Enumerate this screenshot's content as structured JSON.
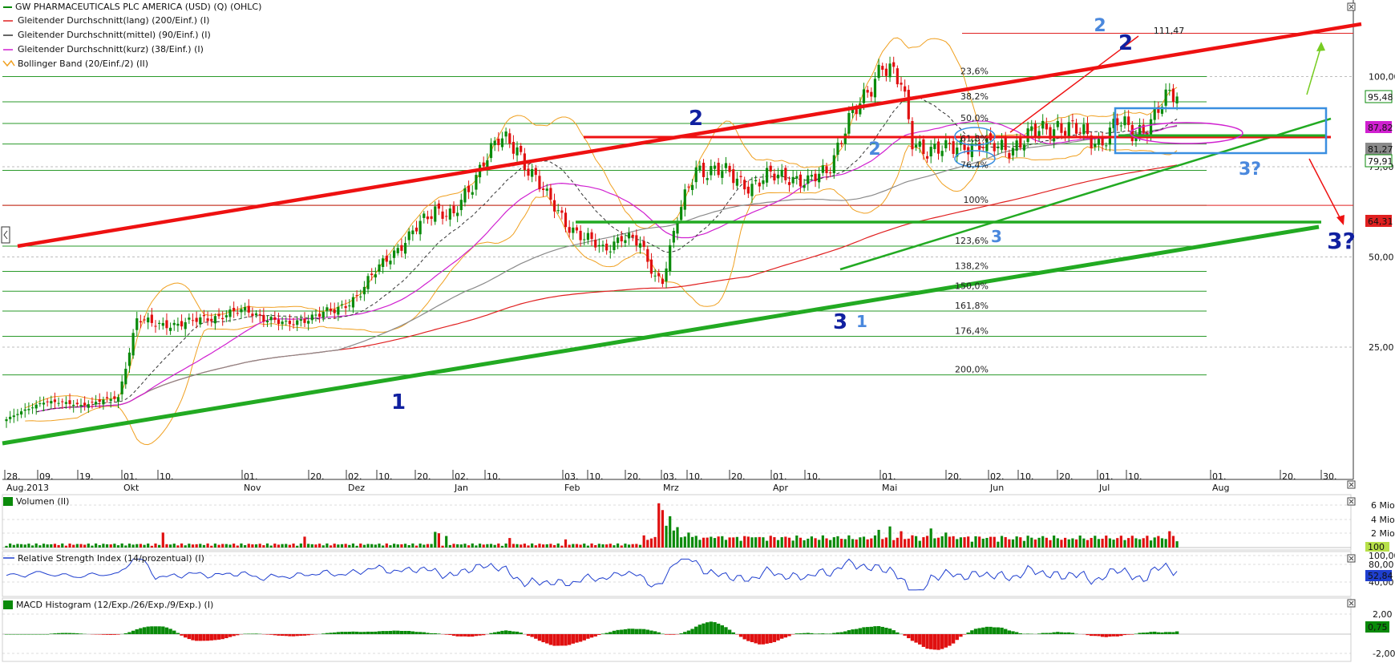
{
  "colors": {
    "up": "#0a8a0a",
    "down": "#e01010",
    "ma_long": "#e02020",
    "ma_mid": "#333333",
    "ma_short": "#d020d0",
    "bollinger": "#f0a020",
    "rsi": "#1f3fcf",
    "trend_red": "#ee1111",
    "trend_green": "#22aa22",
    "wave_dark": "#1020a0",
    "wave_light": "#4a88dd",
    "box": "#3a8fe0"
  },
  "legend": {
    "title": "GW PHARMACEUTICALS PLC AMERICA (USD) (Q) (OHLC)",
    "items": [
      "Gleitender Durchschnitt(lang) (200/Einf.) (I)",
      "Gleitender Durchschnitt(mittel) (90/Einf.) (I)",
      "Gleitender Durchschnitt(kurz) (38/Einf.) (I)",
      "Bollinger Band (20/Einf./2) (II)"
    ]
  },
  "chart_data": [
    {
      "type": "candlestick",
      "title": "GW PHARMACEUTICALS PLC AMERICA (USD) (Q) (OHLC)",
      "y_axis_labels": [
        "100,00",
        "75,00",
        "50,00",
        "25,00"
      ],
      "price_tags": [
        "95,48",
        "87,82",
        "81,27",
        "79,91",
        "64,31"
      ],
      "peak_label": "111,47",
      "fibonacci_levels": [
        "23,6%",
        "38,2%",
        "50,0%",
        "61,8%",
        "76,4%",
        "100%",
        "123,6%",
        "138,2%",
        "150,0%",
        "161,8%",
        "176,4%",
        "200,0%"
      ],
      "wave_labels": [
        "2",
        "2",
        "2",
        "2",
        "3",
        "1",
        "3",
        "1",
        "3?",
        "3?"
      ],
      "x_ticks": [
        {
          "day": "28.",
          "month": "Aug.2013"
        },
        {
          "day": "09.",
          "month": ""
        },
        {
          "day": "19.",
          "month": ""
        },
        {
          "day": "01.",
          "month": "Okt"
        },
        {
          "day": "10.",
          "month": ""
        },
        {
          "day": "01.",
          "month": "Nov"
        },
        {
          "day": "20.",
          "month": ""
        },
        {
          "day": "02.",
          "month": "Dez"
        },
        {
          "day": "10.",
          "month": ""
        },
        {
          "day": "20.",
          "month": ""
        },
        {
          "day": "02.",
          "month": "Jan"
        },
        {
          "day": "10.",
          "month": ""
        },
        {
          "day": "03.",
          "month": "Feb"
        },
        {
          "day": "10.",
          "month": ""
        },
        {
          "day": "20.",
          "month": ""
        },
        {
          "day": "03.",
          "month": "Mrz"
        },
        {
          "day": "10.",
          "month": ""
        },
        {
          "day": "20.",
          "month": ""
        },
        {
          "day": "01.",
          "month": "Apr"
        },
        {
          "day": "10.",
          "month": ""
        },
        {
          "day": "01.",
          "month": "Mai"
        },
        {
          "day": "20.",
          "month": ""
        },
        {
          "day": "02.",
          "month": "Jun"
        },
        {
          "day": "10.",
          "month": ""
        },
        {
          "day": "20.",
          "month": ""
        },
        {
          "day": "01.",
          "month": "Jul"
        },
        {
          "day": "10.",
          "month": ""
        },
        {
          "day": "01.",
          "month": "Aug"
        },
        {
          "day": "20.",
          "month": ""
        },
        {
          "day": "30.",
          "month": ""
        }
      ],
      "close_path": [
        [
          0,
          5
        ],
        [
          10,
          10
        ],
        [
          20,
          9
        ],
        [
          30,
          11
        ],
        [
          35,
          33
        ],
        [
          40,
          31
        ],
        [
          50,
          32
        ],
        [
          58,
          34
        ],
        [
          65,
          35
        ],
        [
          75,
          31
        ],
        [
          80,
          33
        ],
        [
          88,
          35
        ],
        [
          95,
          40
        ],
        [
          102,
          50
        ],
        [
          108,
          55
        ],
        [
          115,
          64
        ],
        [
          120,
          61
        ],
        [
          125,
          70
        ],
        [
          128,
          78
        ],
        [
          132,
          82
        ],
        [
          137,
          80
        ],
        [
          142,
          72
        ],
        [
          145,
          66
        ],
        [
          150,
          60
        ],
        [
          155,
          55
        ],
        [
          160,
          52
        ],
        [
          165,
          56
        ],
        [
          170,
          53
        ],
        [
          174,
          45
        ],
        [
          176,
          44
        ],
        [
          180,
          60
        ],
        [
          185,
          75
        ],
        [
          190,
          74
        ],
        [
          195,
          72
        ],
        [
          200,
          70
        ],
        [
          205,
          72
        ],
        [
          210,
          73
        ],
        [
          215,
          70
        ],
        [
          220,
          74
        ],
        [
          225,
          86
        ],
        [
          230,
          93
        ],
        [
          235,
          105
        ],
        [
          240,
          97
        ],
        [
          243,
          82
        ],
        [
          248,
          80
        ],
        [
          252,
          79
        ],
        [
          258,
          82
        ],
        [
          264,
          80
        ],
        [
          270,
          81
        ],
        [
          276,
          84
        ],
        [
          282,
          87
        ],
        [
          288,
          84
        ],
        [
          293,
          82
        ],
        [
          298,
          87
        ],
        [
          302,
          84
        ],
        [
          306,
          87
        ],
        [
          310,
          92
        ],
        [
          314,
          95
        ]
      ]
    },
    {
      "type": "bar",
      "title": "Volumen (II)",
      "y_axis_labels": [
        "6 Mio.",
        "4 Mio.",
        "2 Mio."
      ],
      "price_tags": [
        "100"
      ]
    },
    {
      "type": "line",
      "title": "Relative Strength Index (14/prozentual) (I)",
      "y_axis_labels": [
        "100,00",
        "80,00",
        "40,00"
      ],
      "price_tags": [
        "52,84"
      ]
    },
    {
      "type": "bar",
      "title": "MACD Histogram (12/Exp./26/Exp./9/Exp.) (I)",
      "y_axis_labels": [
        "2,00",
        "-2,00"
      ],
      "price_tags": [
        "0,75"
      ]
    }
  ]
}
